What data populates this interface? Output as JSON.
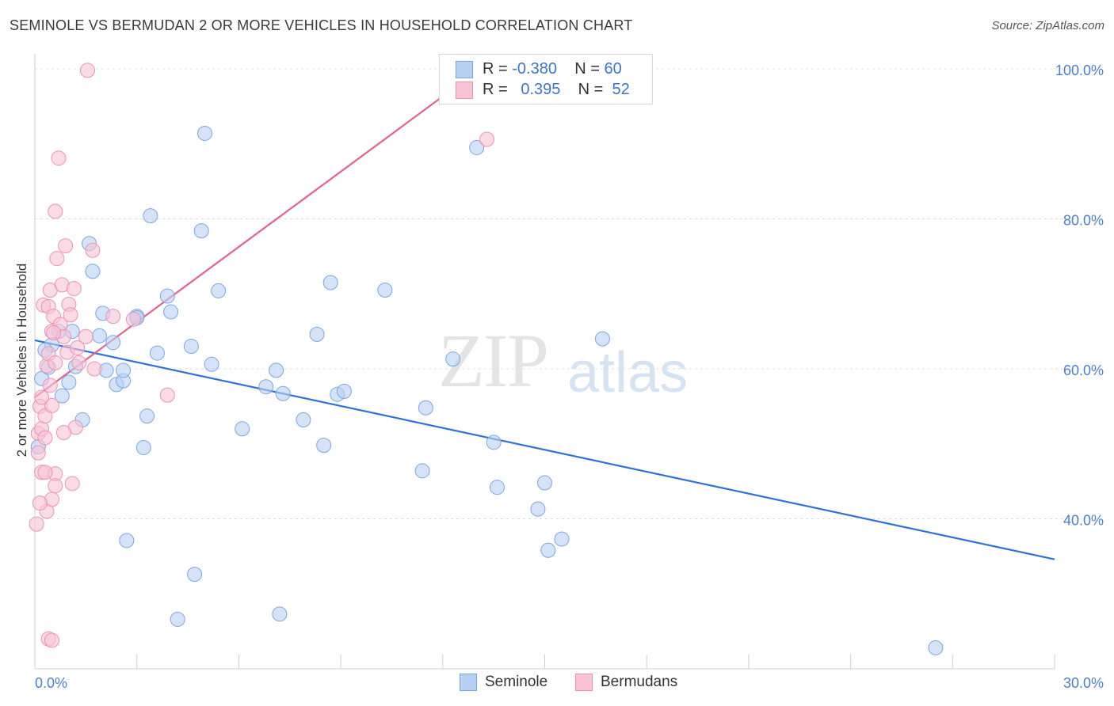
{
  "title": "SEMINOLE VS BERMUDAN 2 OR MORE VEHICLES IN HOUSEHOLD CORRELATION CHART",
  "source": "Source: ZipAtlas.com",
  "watermark": {
    "zip": "ZIP",
    "atlas": "atlas"
  },
  "legend": {
    "rows": [
      {
        "r_label": "R =",
        "r_value": "-0.380",
        "n_label": "N =",
        "n_value": "60"
      },
      {
        "r_label": "R =",
        "r_value": "0.395",
        "n_label": "N =",
        "n_value": "52"
      }
    ]
  },
  "bottom_legend": {
    "seminole": "Seminole",
    "bermudans": "Bermudans"
  },
  "colors": {
    "seminole_fill": "#b8d1f3",
    "seminole_stroke": "#7aa6e6",
    "seminole_line": "#2f72d6",
    "bermudans_fill": "#f8c3d4",
    "bermudans_stroke": "#ee92b0",
    "bermudans_line": "#e4618e",
    "tick_label": "#4a7fd4",
    "grid": "#dcdcdc"
  },
  "chart_data": {
    "type": "scatter",
    "title": "SEMINOLE VS BERMUDAN 2 OR MORE VEHICLES IN HOUSEHOLD CORRELATION CHART",
    "xlabel": "",
    "ylabel": "2 or more Vehicles in Household",
    "xlim": [
      0,
      30
    ],
    "ylim": [
      20,
      102
    ],
    "x_ticks_labeled": [
      "0.0%",
      "30.0%"
    ],
    "y_ticks": [
      40,
      60,
      80,
      100
    ],
    "y_tick_labels": [
      "40.0%",
      "60.0%",
      "80.0%",
      "100.0%"
    ],
    "grid": true,
    "legend_position": "top-center",
    "series": [
      {
        "name": "Seminole",
        "R": -0.38,
        "N": 60,
        "trend": {
          "x": [
            0,
            30
          ],
          "y": [
            63.8,
            34.6
          ]
        },
        "points": [
          [
            0.2,
            58.7
          ],
          [
            0.4,
            60.2
          ],
          [
            0.5,
            63.2
          ],
          [
            0.7,
            65
          ],
          [
            0.8,
            56.4
          ],
          [
            1.0,
            58.2
          ],
          [
            1.1,
            65
          ],
          [
            1.4,
            53.2
          ],
          [
            1.6,
            76.7
          ],
          [
            1.7,
            73
          ],
          [
            1.9,
            64.4
          ],
          [
            2.0,
            67.4
          ],
          [
            2.1,
            59.8
          ],
          [
            2.3,
            63.5
          ],
          [
            2.4,
            57.9
          ],
          [
            2.6,
            58.4
          ],
          [
            2.6,
            59.8
          ],
          [
            2.7,
            37.1
          ],
          [
            3.0,
            67
          ],
          [
            3.0,
            66.8
          ],
          [
            3.2,
            49.5
          ],
          [
            3.3,
            53.7
          ],
          [
            3.4,
            80.4
          ],
          [
            3.6,
            62.1
          ],
          [
            3.9,
            69.7
          ],
          [
            4.0,
            67.6
          ],
          [
            4.2,
            26.6
          ],
          [
            4.6,
            63
          ],
          [
            4.7,
            32.6
          ],
          [
            4.9,
            78.4
          ],
          [
            5.0,
            91.4
          ],
          [
            5.2,
            60.6
          ],
          [
            5.4,
            70.4
          ],
          [
            6.1,
            52
          ],
          [
            6.8,
            57.6
          ],
          [
            7.1,
            59.8
          ],
          [
            7.2,
            27.3
          ],
          [
            7.3,
            56.7
          ],
          [
            7.9,
            53.2
          ],
          [
            8.3,
            64.6
          ],
          [
            8.5,
            49.8
          ],
          [
            8.7,
            71.5
          ],
          [
            8.9,
            56.6
          ],
          [
            9.1,
            57
          ],
          [
            10.3,
            70.5
          ],
          [
            11.4,
            46.4
          ],
          [
            11.5,
            54.8
          ],
          [
            12.3,
            61.3
          ],
          [
            13.0,
            89.5
          ],
          [
            13.5,
            50.2
          ],
          [
            13.6,
            44.2
          ],
          [
            14.8,
            41.3
          ],
          [
            15.0,
            44.8
          ],
          [
            15.1,
            35.8
          ],
          [
            15.5,
            37.3
          ],
          [
            16.7,
            64
          ],
          [
            26.5,
            22.8
          ],
          [
            0.1,
            49.6
          ],
          [
            0.3,
            62.5
          ],
          [
            1.2,
            60.3
          ]
        ]
      },
      {
        "name": "Bermudans",
        "R": 0.395,
        "N": 52,
        "trend": {
          "x": [
            0,
            13.1
          ],
          "y": [
            56.2,
            100
          ]
        },
        "points": [
          [
            0.05,
            39.3
          ],
          [
            0.1,
            48.8
          ],
          [
            0.1,
            51.4
          ],
          [
            0.15,
            55
          ],
          [
            0.2,
            52
          ],
          [
            0.2,
            46.2
          ],
          [
            0.25,
            68.5
          ],
          [
            0.3,
            53.7
          ],
          [
            0.3,
            50.8
          ],
          [
            0.35,
            41
          ],
          [
            0.35,
            60.4
          ],
          [
            0.4,
            62
          ],
          [
            0.4,
            68.3
          ],
          [
            0.45,
            70.5
          ],
          [
            0.5,
            65
          ],
          [
            0.5,
            55.1
          ],
          [
            0.5,
            42.6
          ],
          [
            0.55,
            67
          ],
          [
            0.6,
            46
          ],
          [
            0.6,
            44.4
          ],
          [
            0.6,
            81
          ],
          [
            0.6,
            60.8
          ],
          [
            0.65,
            74.7
          ],
          [
            0.7,
            88.1
          ],
          [
            0.75,
            65.9
          ],
          [
            0.8,
            71.2
          ],
          [
            0.85,
            64.3
          ],
          [
            0.9,
            76.4
          ],
          [
            0.95,
            62.2
          ],
          [
            1.0,
            68.6
          ],
          [
            1.05,
            67.2
          ],
          [
            1.1,
            44.7
          ],
          [
            1.15,
            70.7
          ],
          [
            1.2,
            52.2
          ],
          [
            1.25,
            62.8
          ],
          [
            1.3,
            60.8
          ],
          [
            1.5,
            64.3
          ],
          [
            1.7,
            75.8
          ],
          [
            1.75,
            60
          ],
          [
            2.3,
            67
          ],
          [
            2.9,
            66.6
          ],
          [
            3.9,
            56.5
          ],
          [
            1.55,
            99.8
          ],
          [
            13.3,
            90.6
          ],
          [
            0.4,
            24
          ],
          [
            0.5,
            23.8
          ],
          [
            0.15,
            42.1
          ],
          [
            0.3,
            46.2
          ],
          [
            0.85,
            51.5
          ],
          [
            0.55,
            64.8
          ],
          [
            0.2,
            56.2
          ],
          [
            0.45,
            57.8
          ]
        ]
      }
    ]
  }
}
